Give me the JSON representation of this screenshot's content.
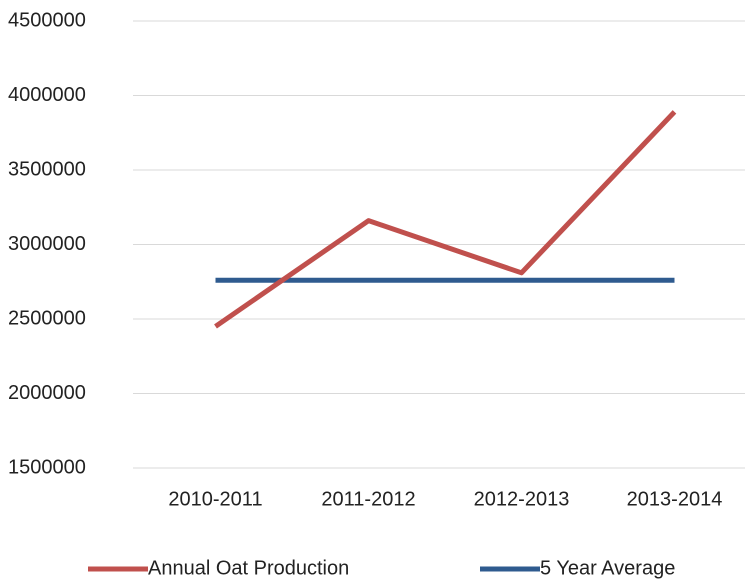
{
  "chart_data": {
    "type": "line",
    "categories": [
      "2010-2011",
      "2011-2012",
      "2012-2013",
      "2013-2014"
    ],
    "series": [
      {
        "name": "Annual Oat Production",
        "color": "#c0504d",
        "values": [
          2450000,
          3160000,
          2810000,
          3890000
        ]
      },
      {
        "name": "5 Year Average",
        "color": "#2f5b8f",
        "values": [
          2760000,
          2760000,
          2760000,
          2760000
        ]
      }
    ],
    "ylim": [
      1500000,
      4500000
    ],
    "yticks": [
      1500000,
      2000000,
      2500000,
      3000000,
      3500000,
      4000000,
      4500000
    ],
    "grid": true,
    "legend": "bottom"
  }
}
